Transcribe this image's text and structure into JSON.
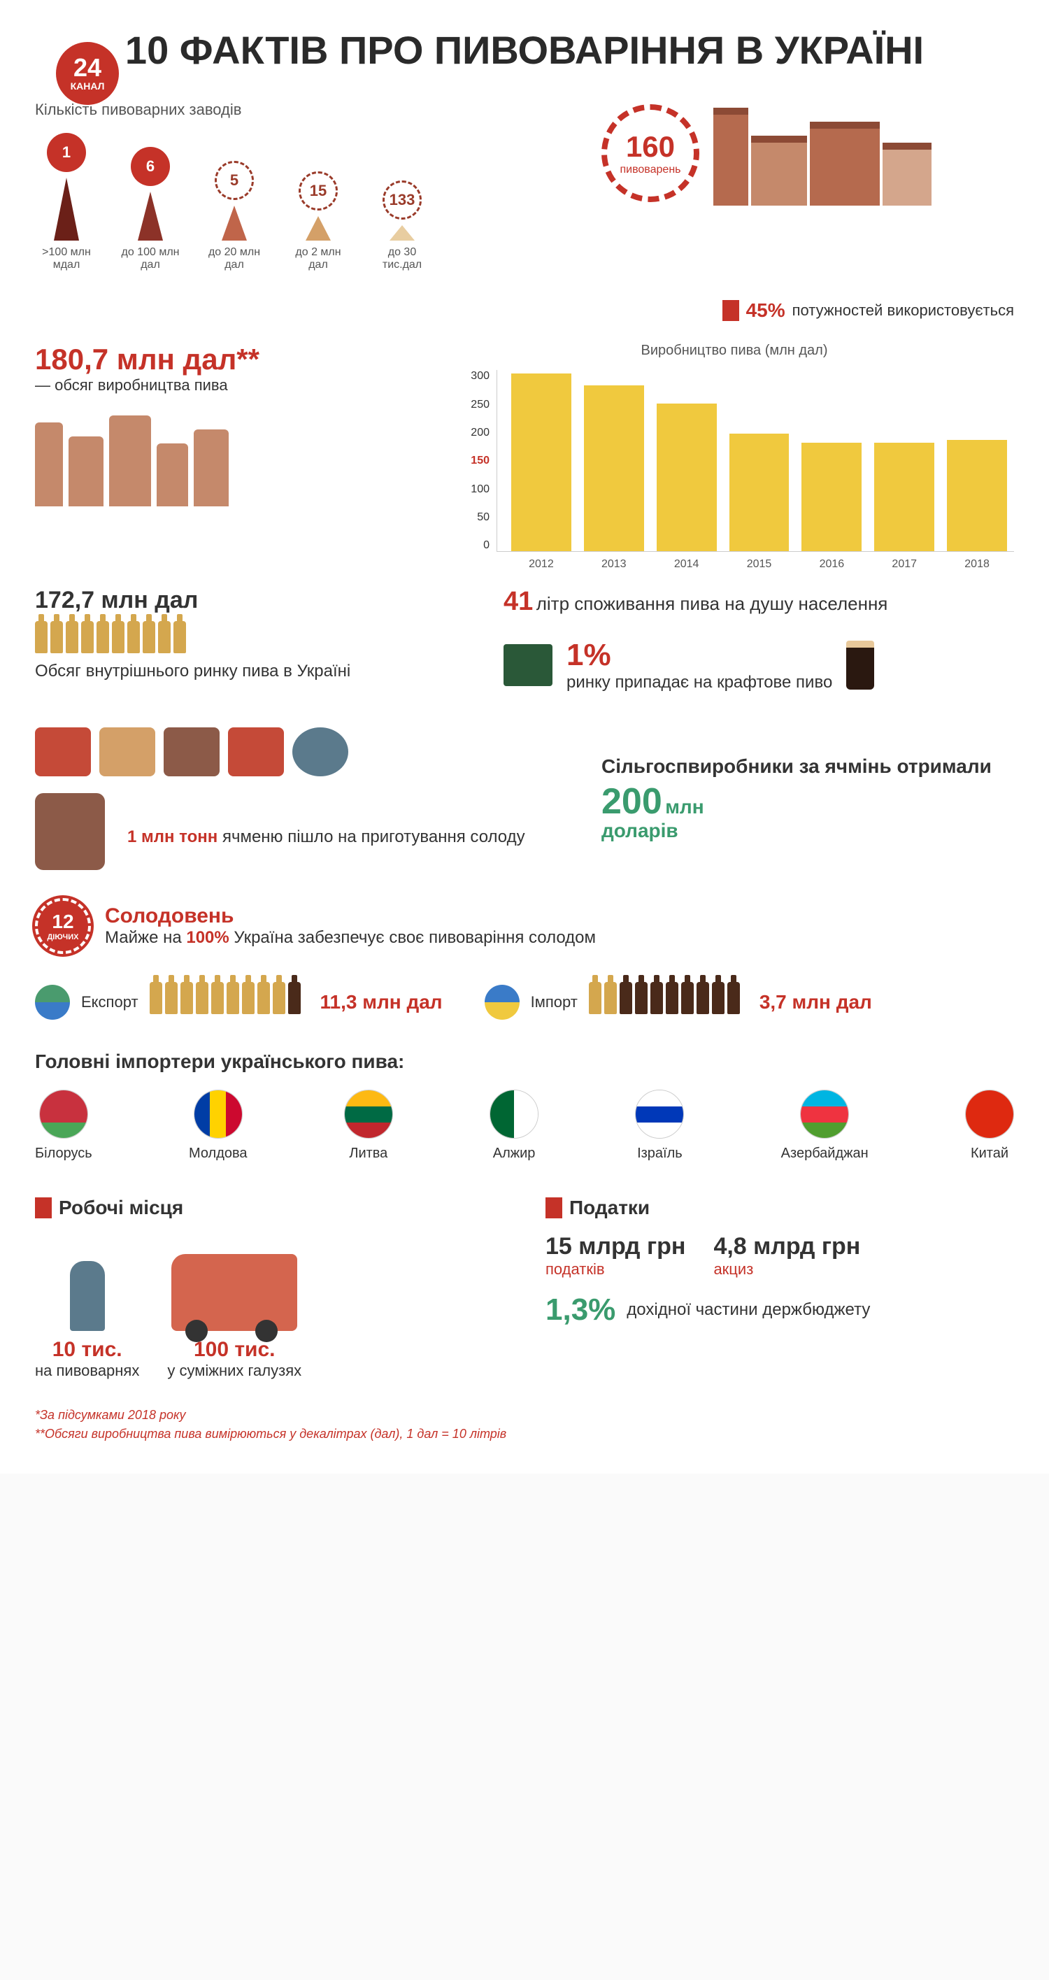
{
  "logo": {
    "number": "24",
    "label": "КАНАЛ"
  },
  "title": "10 ФАКТІВ ПРО ПИВОВАРІННЯ В УКРАЇНІ",
  "breweries": {
    "subtitle": "Кількість пивоварних заводів",
    "items": [
      {
        "count": "1",
        "label": ">100 млн мдал",
        "triangle_height": 90,
        "triangle_color": "#6b2018",
        "dashed": false
      },
      {
        "count": "6",
        "label": "до 100 млн дал",
        "triangle_height": 70,
        "triangle_color": "#8c3228",
        "dashed": false
      },
      {
        "count": "5",
        "label": "до 20 млн дал",
        "triangle_height": 50,
        "triangle_color": "#c0654a",
        "dashed": true
      },
      {
        "count": "15",
        "label": "до 2 млн дал",
        "triangle_height": 35,
        "triangle_color": "#d4a068",
        "dashed": true
      },
      {
        "count": "133",
        "label": "до 30 тис.дал",
        "triangle_height": 22,
        "triangle_color": "#e8cda0",
        "dashed": true
      }
    ],
    "total": {
      "value": "160",
      "unit": "пивоварень"
    }
  },
  "capacity": {
    "value": "45%",
    "text": "потужностей використовується"
  },
  "production": {
    "big": "180,7 млн дал**",
    "sub": "— обсяг виробництва пива",
    "chart": {
      "title": "Виробництво пива (млн дал)",
      "ymax": 300,
      "ytick_step": 50,
      "highlight_tick": 150,
      "years": [
        "2012",
        "2013",
        "2014",
        "2015",
        "2016",
        "2017",
        "2018"
      ],
      "values": [
        295,
        275,
        245,
        195,
        180,
        180,
        185
      ],
      "bar_color": "#f0c93e"
    }
  },
  "market": {
    "volume": "172,7 млн дал",
    "desc": "Обсяг внутрішнього ринку пива в Україні",
    "consumption": {
      "value": "41",
      "text": "літр споживання пива на душу населення"
    },
    "craft": {
      "value": "1%",
      "text": "ринку припадає на крафтове пиво"
    }
  },
  "barley": {
    "fact_value": "1 млн тонн",
    "fact_text": "ячменю пішло на приготування солоду",
    "farmers_title": "Сільгоспвиробники за ячмінь отримали",
    "farmers_value": "200",
    "farmers_unit_top": "млн",
    "farmers_unit_bottom": "доларів"
  },
  "malt": {
    "badge_n": "12",
    "badge_s": "ДІЮЧИХ",
    "head": "Солодовень",
    "sub_pre": "Майже на ",
    "sub_pct": "100%",
    "sub_post": " Україна забезпечує своє пивоваріння солодом"
  },
  "trade": {
    "export": {
      "label": "Експорт",
      "value": "11,3 млн дал",
      "bottles_light": 9,
      "bottles_dark": 1
    },
    "import": {
      "label": "Імпорт",
      "value": "3,7 млн дал",
      "bottles_light": 2,
      "bottles_dark": 8
    }
  },
  "importers": {
    "title": "Головні імпортери українського пива:",
    "list": [
      {
        "name": "Білорусь",
        "colors": [
          "#c8313e",
          "#c8313e",
          "#4aa657"
        ]
      },
      {
        "name": "Молдова",
        "colors": [
          "#003da5",
          "#ffd200",
          "#cc092f"
        ],
        "vertical": true
      },
      {
        "name": "Литва",
        "colors": [
          "#fdb913",
          "#006a44",
          "#c1272d"
        ]
      },
      {
        "name": "Алжир",
        "colors": [
          "#006633",
          "#ffffff"
        ],
        "vertical": true
      },
      {
        "name": "Ізраїль",
        "colors": [
          "#ffffff",
          "#0038b8",
          "#ffffff"
        ]
      },
      {
        "name": "Азербайджан",
        "colors": [
          "#00b5e2",
          "#ef3340",
          "#509e2f"
        ]
      },
      {
        "name": "Китай",
        "colors": [
          "#de2910",
          "#de2910",
          "#de2910"
        ]
      }
    ]
  },
  "jobs": {
    "title": "Робочі місця",
    "items": [
      {
        "value": "10 тис.",
        "label": "на пивоварнях"
      },
      {
        "value": "100 тис.",
        "label": "у суміжних галузях"
      }
    ]
  },
  "taxes": {
    "title": "Податки",
    "items": [
      {
        "value": "15 млрд грн",
        "label": "податків"
      },
      {
        "value": "4,8 млрд грн",
        "label": "акциз"
      }
    ],
    "budget": {
      "value": "1,3%",
      "text": "дохідної частини держбюджету"
    }
  },
  "footnotes": [
    "*За підсумками 2018 року",
    "**Обсяги виробництва пива вимірюються у декалітрах (дал), 1 дал = 10 літрів"
  ]
}
